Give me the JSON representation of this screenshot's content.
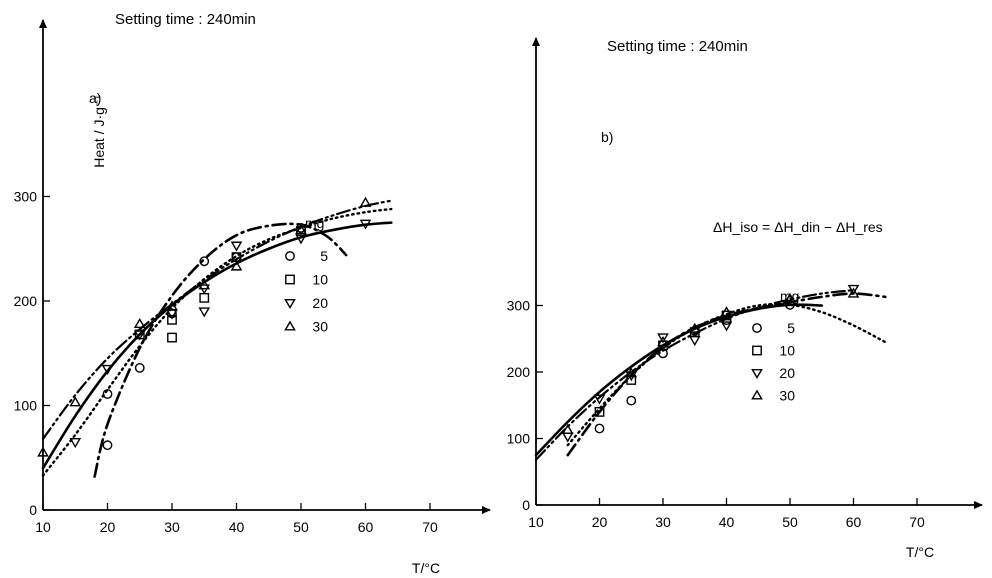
{
  "chart_data": [
    {
      "type": "scatter",
      "panel_label": "a)",
      "title": "Setting time : 240min",
      "xlabel": "T/°C",
      "ylabel": "Heat / J·g⁻¹",
      "xlim": [
        10,
        75
      ],
      "ylim": [
        0,
        320
      ],
      "xticks": [
        10,
        20,
        30,
        40,
        50,
        60,
        70
      ],
      "yticks": [
        0,
        100,
        200,
        300
      ],
      "legend_title": "mg",
      "series": [
        {
          "name": "5",
          "marker": "circle",
          "line": "dotted",
          "points": [
            [
              20,
              62
            ],
            [
              20,
              111
            ],
            [
              25,
              136
            ],
            [
              30,
              188
            ],
            [
              35,
              238
            ],
            [
              40,
              242
            ],
            [
              50,
              270
            ]
          ],
          "curve": [
            [
              10,
              33
            ],
            [
              15,
              72
            ],
            [
              20,
              115
            ],
            [
              25,
              157
            ],
            [
              30,
              193
            ],
            [
              35,
              221
            ],
            [
              40,
              243
            ],
            [
              45,
              259
            ],
            [
              50,
              270
            ],
            [
              55,
              279
            ],
            [
              60,
              285
            ],
            [
              64,
              288
            ]
          ]
        },
        {
          "name": "10",
          "marker": "square",
          "line": "solid",
          "points": [
            [
              25,
              168
            ],
            [
              30,
              165
            ],
            [
              30,
              182
            ],
            [
              35,
              203
            ],
            [
              40,
              242
            ],
            [
              50,
              267
            ]
          ],
          "curve": [
            [
              10,
              40
            ],
            [
              15,
              90
            ],
            [
              20,
              133
            ],
            [
              25,
              168
            ],
            [
              30,
              196
            ],
            [
              35,
              218
            ],
            [
              40,
              236
            ],
            [
              45,
              250
            ],
            [
              50,
              261
            ],
            [
              55,
              268
            ],
            [
              60,
              273
            ],
            [
              64,
              275
            ]
          ]
        },
        {
          "name": "20",
          "marker": "triangle-down",
          "line": "dash-dot",
          "points": [
            [
              15,
              65
            ],
            [
              20,
              135
            ],
            [
              25,
              168
            ],
            [
              30,
              188
            ],
            [
              35,
              190
            ],
            [
              35,
              212
            ],
            [
              40,
              253
            ],
            [
              50,
              260
            ],
            [
              60,
              274
            ]
          ],
          "curve": [
            [
              18,
              32
            ],
            [
              20,
              82
            ],
            [
              25,
              155
            ],
            [
              30,
              205
            ],
            [
              35,
              240
            ],
            [
              40,
              263
            ],
            [
              45,
              272
            ],
            [
              50,
              273
            ],
            [
              54,
              262
            ],
            [
              57,
              244
            ]
          ]
        },
        {
          "name": "30",
          "marker": "triangle-up",
          "line": "dash-dot-dot",
          "points": [
            [
              10,
              55
            ],
            [
              15,
              103
            ],
            [
              25,
              178
            ],
            [
              30,
              195
            ],
            [
              35,
              215
            ],
            [
              40,
              233
            ],
            [
              50,
              268
            ],
            [
              60,
              294
            ]
          ],
          "curve": [
            [
              10,
              68
            ],
            [
              15,
              110
            ],
            [
              20,
              145
            ],
            [
              25,
              173
            ],
            [
              30,
              197
            ],
            [
              35,
              220
            ],
            [
              40,
              240
            ],
            [
              45,
              257
            ],
            [
              50,
              271
            ],
            [
              55,
              282
            ],
            [
              60,
              291
            ],
            [
              64,
              296
            ]
          ]
        }
      ]
    },
    {
      "type": "scatter",
      "panel_label": "b)",
      "title": "Setting time : 240min",
      "xlabel": "T/°C",
      "ylabel": "",
      "annotation": "ΔH_iso = ΔH_din − ΔH_res",
      "xlim": [
        10,
        75
      ],
      "ylim": [
        0,
        350
      ],
      "xticks": [
        10,
        20,
        30,
        40,
        50,
        60,
        70
      ],
      "yticks": [
        0,
        100,
        200,
        300
      ],
      "legend_title": "mg",
      "series": [
        {
          "name": "5",
          "marker": "circle",
          "line": "dotted",
          "points": [
            [
              20,
              115
            ],
            [
              25,
              157
            ],
            [
              30,
              228
            ],
            [
              35,
              262
            ],
            [
              40,
              278
            ],
            [
              50,
              301
            ]
          ],
          "curve": [
            [
              15,
              90
            ],
            [
              20,
              145
            ],
            [
              25,
              195
            ],
            [
              30,
              236
            ],
            [
              35,
              266
            ],
            [
              40,
              287
            ],
            [
              45,
              300
            ],
            [
              50,
              301
            ],
            [
              55,
              290
            ],
            [
              60,
              270
            ],
            [
              65,
              245
            ]
          ]
        },
        {
          "name": "10",
          "marker": "square",
          "line": "solid",
          "points": [
            [
              20,
              140
            ],
            [
              25,
              188
            ],
            [
              30,
              240
            ],
            [
              35,
              260
            ],
            [
              40,
              285
            ]
          ],
          "curve": [
            [
              10,
              75
            ],
            [
              15,
              125
            ],
            [
              20,
              170
            ],
            [
              25,
              208
            ],
            [
              30,
              240
            ],
            [
              35,
              265
            ],
            [
              40,
              283
            ],
            [
              45,
              295
            ],
            [
              50,
              301
            ],
            [
              55,
              300
            ]
          ]
        },
        {
          "name": "20",
          "marker": "triangle-down",
          "line": "dash-dot",
          "points": [
            [
              15,
              103
            ],
            [
              20,
              160
            ],
            [
              25,
              195
            ],
            [
              30,
              252
            ],
            [
              35,
              248
            ],
            [
              40,
              270
            ],
            [
              60,
              325
            ]
          ],
          "curve": [
            [
              15,
              75
            ],
            [
              20,
              140
            ],
            [
              25,
              195
            ],
            [
              30,
              238
            ],
            [
              35,
              267
            ],
            [
              40,
              285
            ],
            [
              45,
              296
            ],
            [
              50,
              305
            ],
            [
              55,
              313
            ],
            [
              60,
              318
            ],
            [
              65,
              313
            ]
          ]
        },
        {
          "name": "30",
          "marker": "triangle-up",
          "line": "dash-dot-dot",
          "points": [
            [
              15,
              113
            ],
            [
              25,
              198
            ],
            [
              30,
              245
            ],
            [
              35,
              265
            ],
            [
              40,
              290
            ],
            [
              50,
              310
            ],
            [
              60,
              318
            ]
          ],
          "curve": [
            [
              10,
              68
            ],
            [
              15,
              118
            ],
            [
              20,
              162
            ],
            [
              25,
              200
            ],
            [
              30,
              232
            ],
            [
              35,
              258
            ],
            [
              40,
              280
            ],
            [
              45,
              297
            ],
            [
              50,
              309
            ],
            [
              55,
              318
            ],
            [
              60,
              323
            ]
          ]
        }
      ]
    }
  ]
}
